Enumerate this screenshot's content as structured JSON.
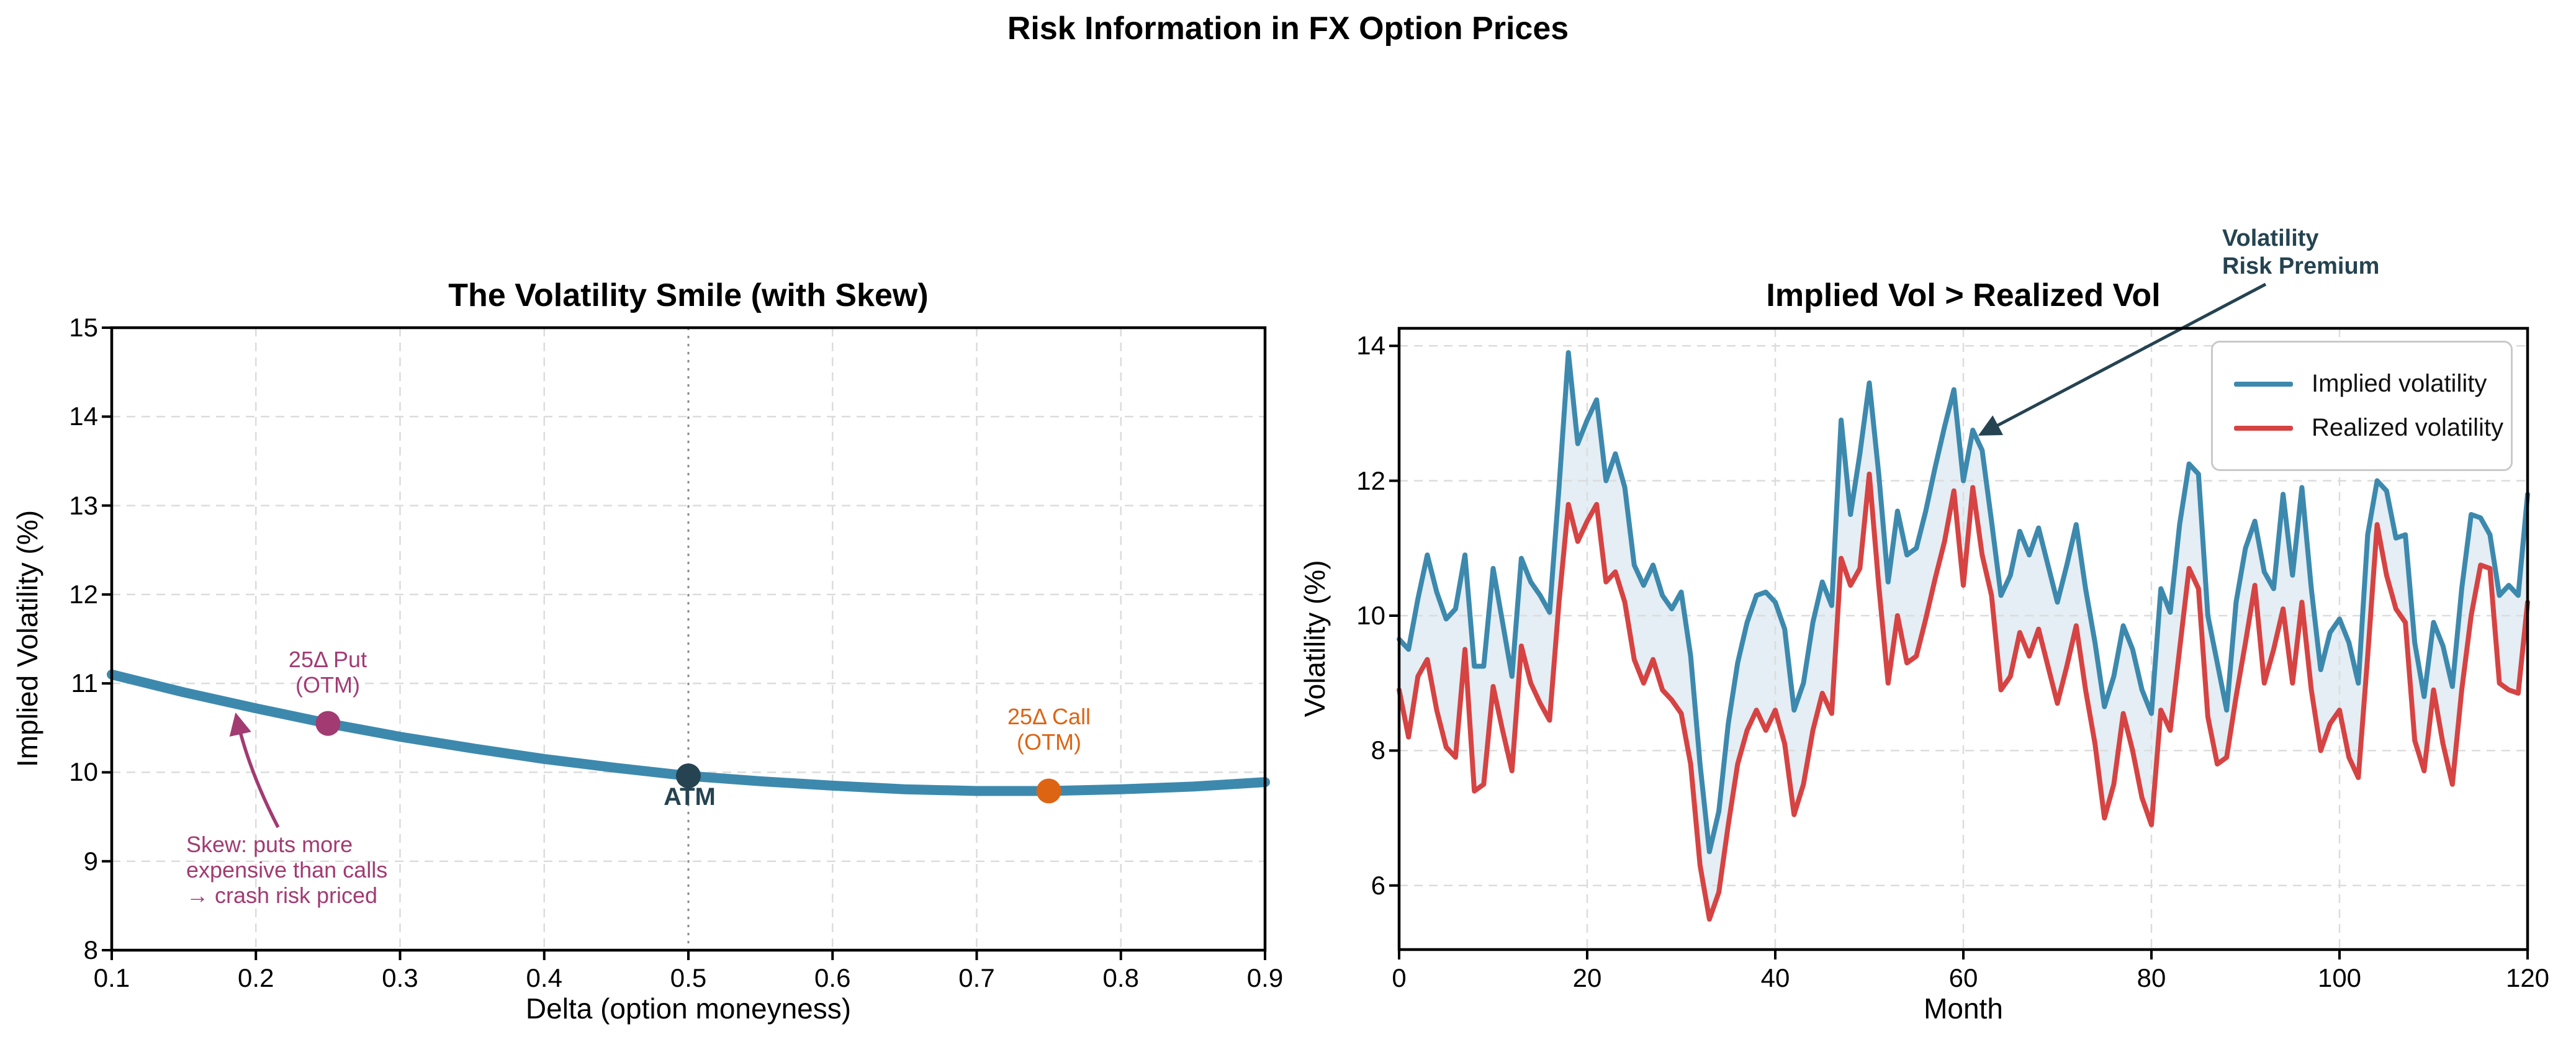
{
  "figure": {
    "suptitle": "Risk Information in FX Option Prices"
  },
  "colors": {
    "implied_blue": "#3d89ae",
    "realized_red": "#d64343",
    "put_magenta": "#a23b72",
    "call_orange": "#dd6413",
    "dark_slate": "#254351",
    "grid_gray": "#dcdcdc",
    "vline_gray": "#8c8c8c",
    "axis_black": "#000000"
  },
  "chart_data": [
    {
      "type": "line",
      "title": "The Volatility Smile (with Skew)",
      "xlabel": "Delta (option moneyness)",
      "ylabel": "Implied Volatility (%)",
      "xlim": [
        0.1,
        0.9
      ],
      "ylim": [
        8,
        15
      ],
      "grid": true,
      "xticks": [
        0.1,
        0.2,
        0.3,
        0.4,
        0.5,
        0.6,
        0.7,
        0.8,
        0.9
      ],
      "xtick_labels": [
        "0.1",
        "0.2",
        "0.3",
        "0.4",
        "0.5",
        "0.6",
        "0.7",
        "0.8",
        "0.9"
      ],
      "yticks": [
        8,
        9,
        10,
        11,
        12,
        13,
        14,
        15
      ],
      "ytick_labels": [
        "8",
        "9",
        "10",
        "11",
        "12",
        "13",
        "14",
        "15"
      ],
      "vline_x": 0.5,
      "series": [
        {
          "name": "implied-vol-smile",
          "color": "#3d89ae",
          "x": [
            0.1,
            0.15,
            0.2,
            0.25,
            0.3,
            0.35,
            0.4,
            0.45,
            0.5,
            0.55,
            0.6,
            0.65,
            0.7,
            0.75,
            0.8,
            0.85,
            0.9
          ],
          "y": [
            11.1,
            10.9,
            10.72,
            10.55,
            10.4,
            10.27,
            10.15,
            10.05,
            9.96,
            9.9,
            9.85,
            9.81,
            9.79,
            9.79,
            9.81,
            9.84,
            9.89
          ]
        }
      ],
      "markers": [
        {
          "name": "put-25d",
          "x": 0.25,
          "y": 10.55,
          "color": "#a23b72",
          "label_line1": "25Δ Put",
          "label_line2": "(OTM)"
        },
        {
          "name": "atm",
          "x": 0.5,
          "y": 9.96,
          "color": "#254351",
          "label": "ATM"
        },
        {
          "name": "call-25d",
          "x": 0.75,
          "y": 9.79,
          "color": "#dd6413",
          "label_line1": "25Δ Call",
          "label_line2": "(OTM)"
        }
      ],
      "skew_annotation": {
        "color": "#a23b72",
        "line1": "Skew: puts more",
        "line2": "expensive than calls",
        "line3": "→ crash risk priced"
      }
    },
    {
      "type": "line",
      "title": "Implied Vol > Realized Vol",
      "xlabel": "Month",
      "ylabel": "Volatility (%)",
      "xlim": [
        0,
        120
      ],
      "ylim": [
        5.05,
        14.26
      ],
      "grid": true,
      "xticks": [
        0,
        20,
        40,
        60,
        80,
        100,
        120
      ],
      "xtick_labels": [
        "0",
        "20",
        "40",
        "60",
        "80",
        "100",
        "120"
      ],
      "yticks": [
        6,
        8,
        10,
        12,
        14
      ],
      "ytick_labels": [
        "6",
        "8",
        "10",
        "12",
        "14"
      ],
      "legend": {
        "position": "upper right",
        "entries": [
          {
            "label": "Implied volatility",
            "color": "#3d89ae"
          },
          {
            "label": "Realized volatility",
            "color": "#d64343"
          }
        ]
      },
      "fill_between": {
        "color": "#3d89ae",
        "opacity": 0.14
      },
      "series": [
        {
          "name": "implied",
          "label": "Implied volatility",
          "color": "#3d89ae",
          "values": [
            9.65,
            9.5,
            10.25,
            10.9,
            10.35,
            9.95,
            10.1,
            10.9,
            9.25,
            9.25,
            10.7,
            9.9,
            9.1,
            10.85,
            10.5,
            10.3,
            10.05,
            11.9,
            13.9,
            12.55,
            12.9,
            13.2,
            12.0,
            12.4,
            11.9,
            10.75,
            10.45,
            10.75,
            10.3,
            10.1,
            10.35,
            9.4,
            7.8,
            6.5,
            7.1,
            8.4,
            9.3,
            9.9,
            10.3,
            10.35,
            10.2,
            9.8,
            8.6,
            9.0,
            9.9,
            10.5,
            10.15,
            12.9,
            11.5,
            12.4,
            13.45,
            12.1,
            10.5,
            11.55,
            10.9,
            11.0,
            11.55,
            12.2,
            12.8,
            13.35,
            12.0,
            12.75,
            12.45,
            11.4,
            10.3,
            10.6,
            11.25,
            10.9,
            11.3,
            10.75,
            10.2,
            10.75,
            11.35,
            10.4,
            9.6,
            8.65,
            9.1,
            9.85,
            9.5,
            8.9,
            8.55,
            10.4,
            10.05,
            11.35,
            12.25,
            12.1,
            10.0,
            9.3,
            8.6,
            10.2,
            11.0,
            11.4,
            10.65,
            10.4,
            11.8,
            10.6,
            11.9,
            10.4,
            9.2,
            9.75,
            9.95,
            9.6,
            9.0,
            11.2,
            12.0,
            11.85,
            11.15,
            11.2,
            9.6,
            8.8,
            9.9,
            9.55,
            8.95,
            10.4,
            11.5,
            11.45,
            11.2,
            10.3,
            10.45,
            10.3,
            11.8
          ]
        },
        {
          "name": "realized",
          "label": "Realized volatility",
          "color": "#d64343",
          "values": [
            8.9,
            8.2,
            9.1,
            9.35,
            8.6,
            8.05,
            7.9,
            9.5,
            7.4,
            7.5,
            8.95,
            8.3,
            7.7,
            9.55,
            9.0,
            8.7,
            8.45,
            10.2,
            11.65,
            11.1,
            11.4,
            11.65,
            10.5,
            10.65,
            10.2,
            9.35,
            9.0,
            9.35,
            8.9,
            8.75,
            8.55,
            7.8,
            6.3,
            5.5,
            5.9,
            6.9,
            7.8,
            8.3,
            8.6,
            8.3,
            8.6,
            8.1,
            7.05,
            7.5,
            8.3,
            8.85,
            8.55,
            10.85,
            10.45,
            10.7,
            12.1,
            10.45,
            9.0,
            10.0,
            9.3,
            9.4,
            9.95,
            10.55,
            11.1,
            11.85,
            10.45,
            11.9,
            10.9,
            10.3,
            8.9,
            9.1,
            9.75,
            9.4,
            9.8,
            9.25,
            8.7,
            9.25,
            9.85,
            8.9,
            8.1,
            7.0,
            7.5,
            8.55,
            8.0,
            7.3,
            6.9,
            8.6,
            8.3,
            9.5,
            10.7,
            10.4,
            8.5,
            7.8,
            7.9,
            8.8,
            9.6,
            10.45,
            9.0,
            9.5,
            10.1,
            9.0,
            10.2,
            8.9,
            8.0,
            8.4,
            8.6,
            7.9,
            7.6,
            9.4,
            11.35,
            10.6,
            10.1,
            9.9,
            8.15,
            7.7,
            8.9,
            8.1,
            7.5,
            8.9,
            10.0,
            10.75,
            10.7,
            9.0,
            8.9,
            8.85,
            10.2
          ]
        }
      ],
      "vrp_annotation": {
        "color": "#254351",
        "line1": "Volatility",
        "line2": "Risk Premium",
        "arrow_tip_month": 62,
        "arrow_tip_vol": 12.7
      }
    }
  ]
}
